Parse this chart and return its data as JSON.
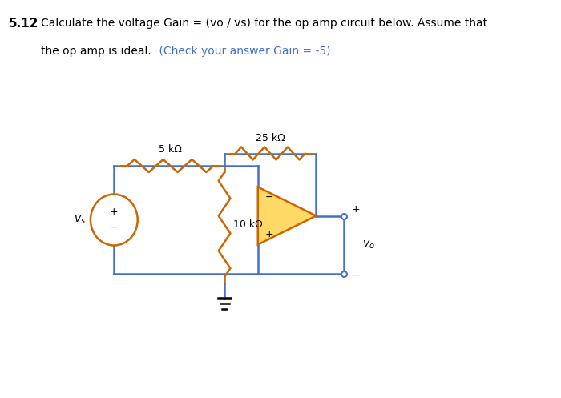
{
  "title_number": "5.12",
  "title_text": "Calculate the voltage Gain = (vo / vs) for the op amp circuit below. Assume that",
  "title_text2": "the op amp is ideal.",
  "title_hint": "(Check your answer Gain = -5)",
  "title_color": "#000000",
  "hint_color": "#4472C4",
  "bg_color": "#ffffff",
  "wire_color": "#4472C4",
  "resistor_color": "#CC6600",
  "opamp_fill": "#FFD966",
  "opamp_edge": "#CC6600",
  "r1_label": "5 kΩ",
  "r2_label": "25 kΩ",
  "r3_label": "10 kΩ",
  "vs_label": "v_s",
  "vo_label": "v_o"
}
